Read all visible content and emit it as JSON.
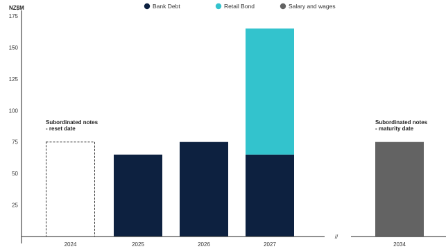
{
  "chart_data": {
    "type": "bar",
    "stacked": true,
    "title": "",
    "ylabel": "NZ$M",
    "ylim": [
      0,
      175
    ],
    "yticks": [
      25,
      50,
      75,
      100,
      125,
      150,
      175
    ],
    "categories": [
      "2024",
      "2025",
      "2026",
      "2027",
      "2034"
    ],
    "axis_break_label": "//",
    "series": [
      {
        "name": "Bank Debt",
        "color": "#0d2140",
        "values": [
          0,
          65,
          75,
          65,
          0
        ]
      },
      {
        "name": "Retail Bond",
        "color": "#33c3cd",
        "values": [
          0,
          0,
          0,
          100,
          0
        ]
      },
      {
        "name": "Salary and wages",
        "color": "#636363",
        "values": [
          0,
          0,
          0,
          0,
          75
        ]
      }
    ],
    "outline_bars": [
      {
        "category": "2024",
        "value": 75,
        "style": "dashed"
      }
    ],
    "annotations": [
      {
        "category": "2024",
        "lines": [
          "Subordinated notes",
          "- reset date"
        ]
      },
      {
        "category": "2034",
        "lines": [
          "Subordinated notes",
          "- maturity date"
        ]
      }
    ],
    "legend_position": "top-center",
    "grid": false
  }
}
